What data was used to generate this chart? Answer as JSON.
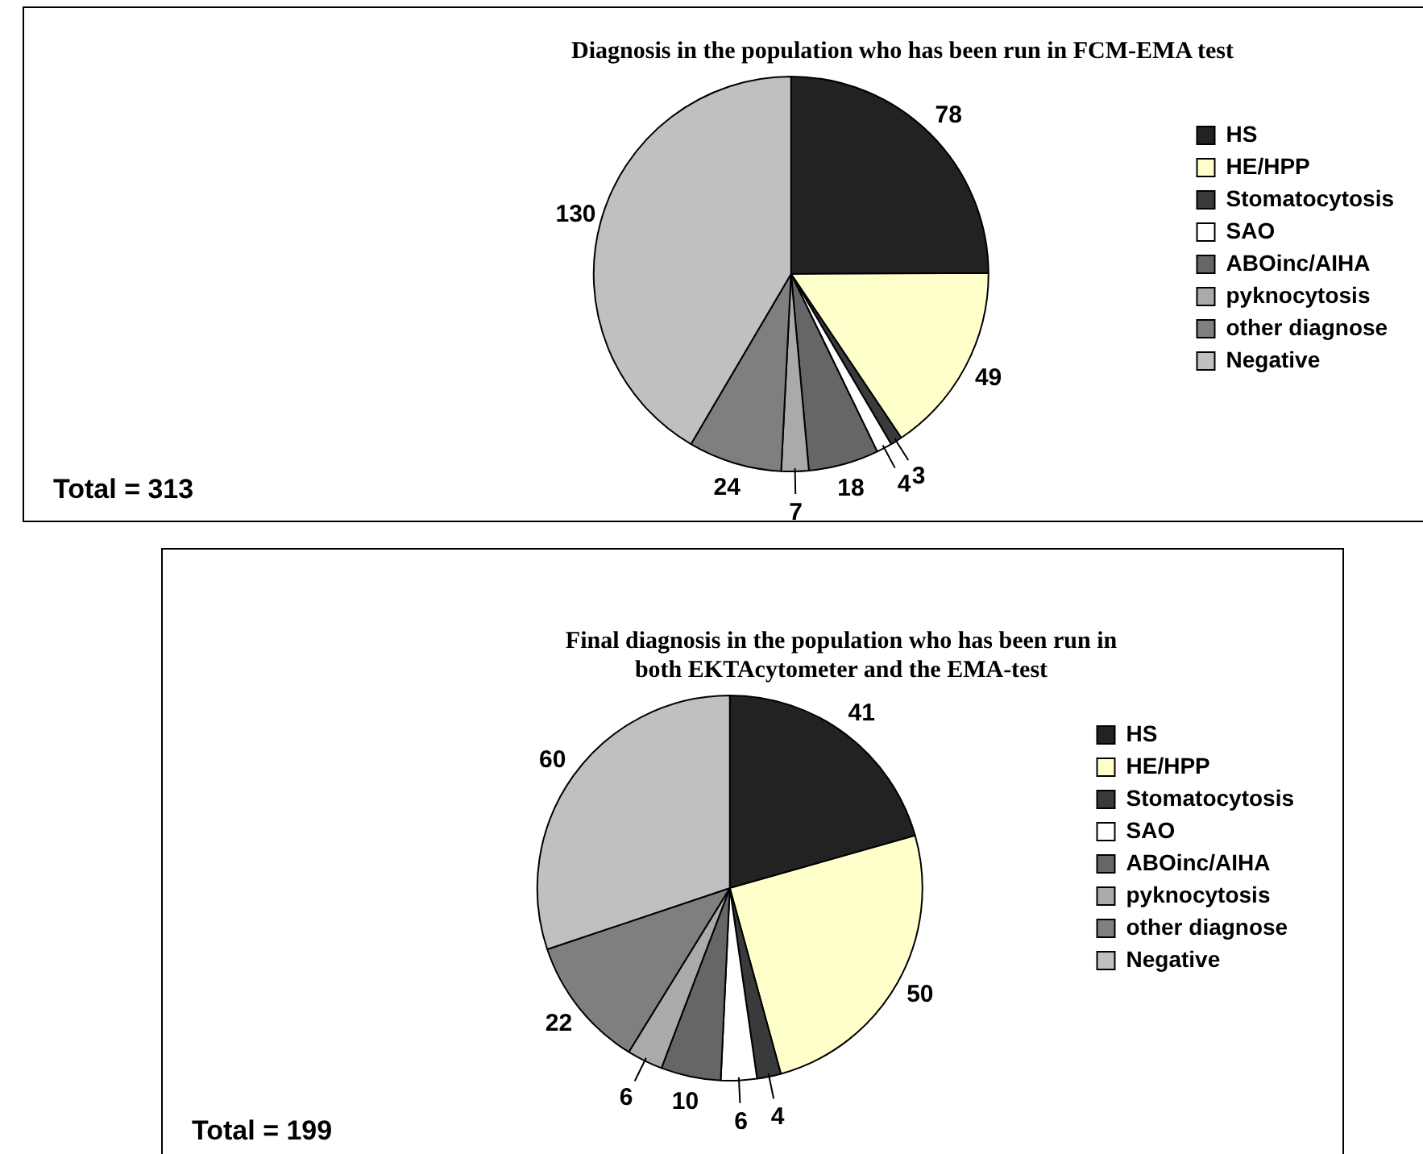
{
  "chart_data": [
    {
      "type": "pie",
      "title": "Diagnosis in the population who has been run in FCM-EMA test",
      "categories": [
        "HS",
        "HE/HPP",
        "Stomatocytosis",
        "SAO",
        "ABOinc/AIHA",
        "pyknocytosis",
        "other diagnose",
        "Negative"
      ],
      "values": [
        78,
        49,
        3,
        4,
        18,
        7,
        24,
        130
      ],
      "colors": [
        "#222222",
        "#ffffcc",
        "#3a3a3a",
        "#ffffff",
        "#666666",
        "#aaaaaa",
        "#7f7f7f",
        "#c0c0c0"
      ],
      "data_labels": true,
      "legend": "right",
      "annotations": [
        "Total = 313"
      ]
    },
    {
      "type": "pie",
      "title": "Final diagnosis in the population who has been run in both EKTAcytometer and the EMA-test",
      "categories": [
        "HS",
        "HE/HPP",
        "Stomatocytosis",
        "SAO",
        "ABOinc/AIHA",
        "pyknocytosis",
        "other diagnose",
        "Negative"
      ],
      "values": [
        41,
        50,
        4,
        6,
        10,
        6,
        22,
        60
      ],
      "colors": [
        "#222222",
        "#ffffcc",
        "#3a3a3a",
        "#ffffff",
        "#666666",
        "#aaaaaa",
        "#7f7f7f",
        "#c0c0c0"
      ],
      "data_labels": true,
      "legend": "right",
      "annotations": [
        "Total = 199"
      ]
    }
  ]
}
